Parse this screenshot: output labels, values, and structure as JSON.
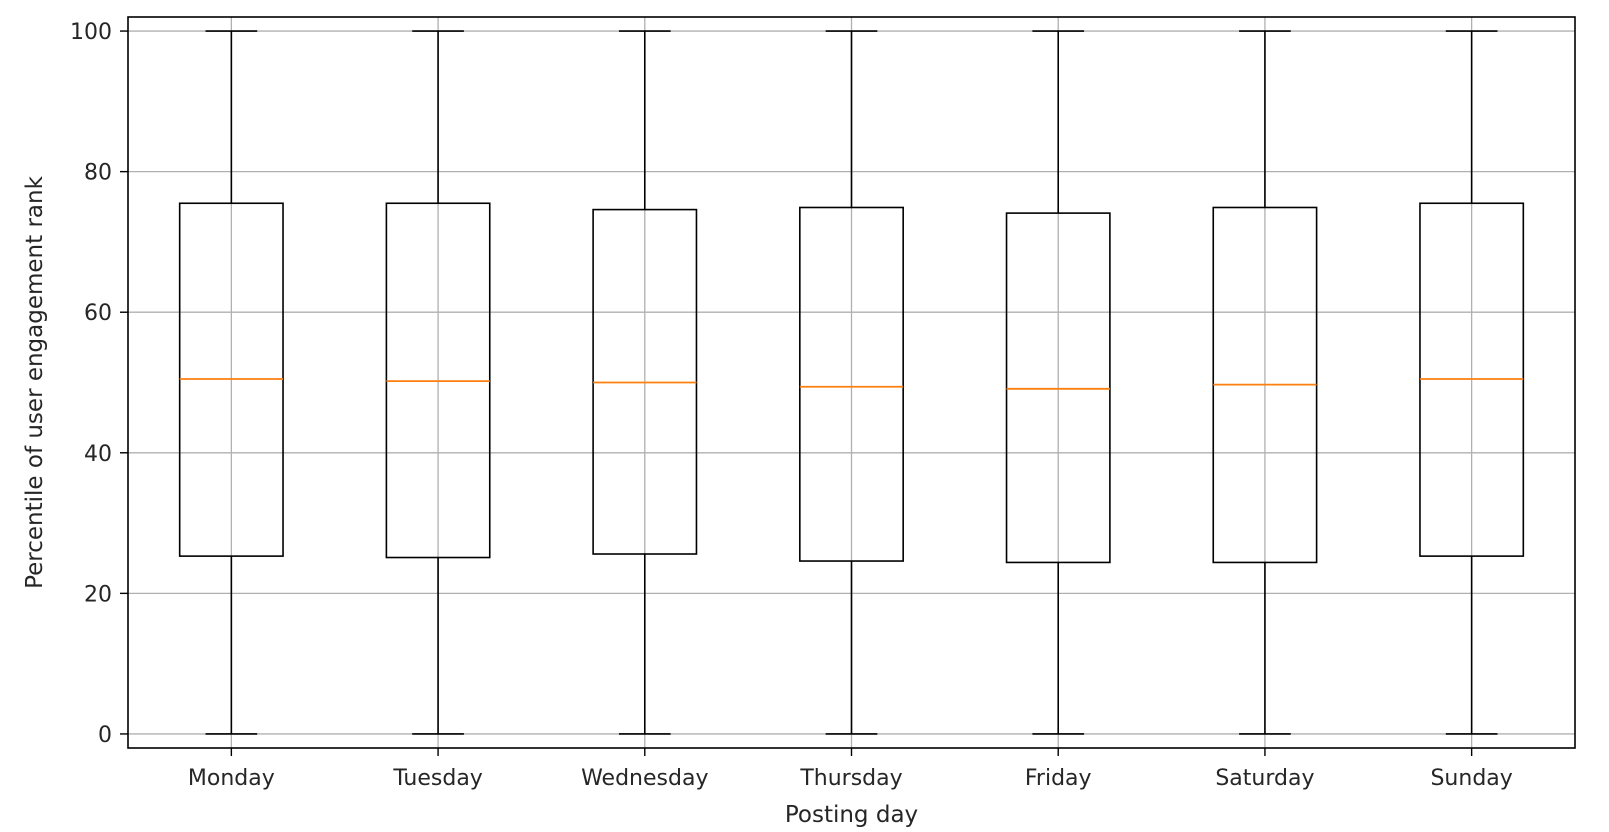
{
  "chart_data": {
    "type": "boxplot",
    "title": "",
    "xlabel": "Posting day",
    "ylabel": "Percentile of user engagement rank",
    "ylim": [
      -2,
      102
    ],
    "yticks": [
      0,
      20,
      40,
      60,
      80,
      100
    ],
    "grid": true,
    "categories": [
      "Monday",
      "Tuesday",
      "Wednesday",
      "Thursday",
      "Friday",
      "Saturday",
      "Sunday"
    ],
    "boxes": [
      {
        "label": "Monday",
        "whislo": 0,
        "q1": 25.3,
        "med": 50.5,
        "q3": 75.5,
        "whishi": 100
      },
      {
        "label": "Tuesday",
        "whislo": 0,
        "q1": 25.1,
        "med": 50.2,
        "q3": 75.5,
        "whishi": 100
      },
      {
        "label": "Wednesday",
        "whislo": 0,
        "q1": 25.6,
        "med": 50.0,
        "q3": 74.6,
        "whishi": 100
      },
      {
        "label": "Thursday",
        "whislo": 0,
        "q1": 24.6,
        "med": 49.4,
        "q3": 74.9,
        "whishi": 100
      },
      {
        "label": "Friday",
        "whislo": 0,
        "q1": 24.4,
        "med": 49.1,
        "q3": 74.1,
        "whishi": 100
      },
      {
        "label": "Saturday",
        "whislo": 0,
        "q1": 24.4,
        "med": 49.7,
        "q3": 74.9,
        "whishi": 100
      },
      {
        "label": "Sunday",
        "whislo": 0,
        "q1": 25.3,
        "med": 50.5,
        "q3": 75.5,
        "whishi": 100
      }
    ],
    "colors": {
      "box": "#000000",
      "median": "#ff7f0e",
      "grid": "#b0b0b0"
    }
  }
}
